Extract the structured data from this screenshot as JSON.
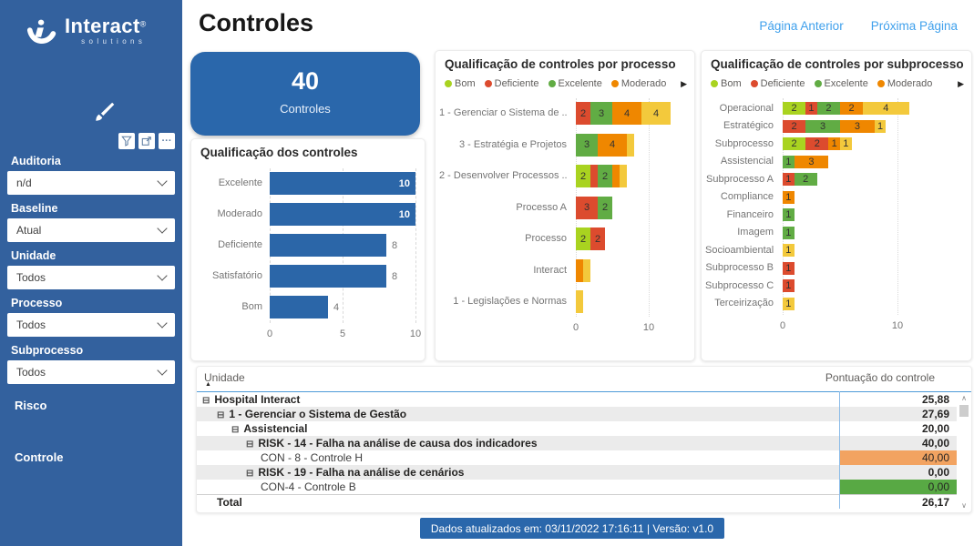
{
  "palette": {
    "Bom": "#a9d320",
    "Deficiente": "#dc4b2e",
    "Excelente": "#61ac44",
    "Moderado": "#ef8700",
    "Satisfatório": "#f3c93c"
  },
  "colors": {
    "sidebar": "#33619e",
    "accent_blue": "#2a67ab",
    "bar_blue": "#2b66a8",
    "link_blue": "#3fa0ec",
    "table_value_orange": "#f2a361",
    "table_value_green": "#58a944"
  },
  "sidebar": {
    "logo": {
      "brand": "Interact",
      "reg": "®",
      "sub": "solutions"
    },
    "tools": [
      "brush-clear-filters",
      "filter",
      "export",
      "more-options"
    ],
    "filters": [
      {
        "label": "Auditoria",
        "value": "n/d"
      },
      {
        "label": "Baseline",
        "value": "Atual"
      },
      {
        "label": "Unidade",
        "value": "Todos"
      },
      {
        "label": "Processo",
        "value": "Todos"
      },
      {
        "label": "Subprocesso",
        "value": "Todos"
      }
    ],
    "nav": [
      {
        "label": "Risco"
      },
      {
        "label": "Controle"
      }
    ]
  },
  "header": {
    "title": "Controles",
    "prev_label": "Página Anterior",
    "next_label": "Próxima Página"
  },
  "kpi": {
    "value": "40",
    "label": "Controles"
  },
  "chart_data": [
    {
      "id": "qual",
      "type": "bar",
      "title": "Qualificação dos controles",
      "categories": [
        "Excelente",
        "Moderado",
        "Deficiente",
        "Satisfatório",
        "Bom"
      ],
      "values": [
        10,
        10,
        8,
        8,
        4
      ],
      "xlim": [
        0,
        10
      ],
      "xticks": [
        0,
        5,
        10
      ],
      "bar_color": "#2b66a8",
      "orientation": "horizontal",
      "grid": "dashed-vertical"
    },
    {
      "id": "proc",
      "type": "stacked_bar",
      "title": "Qualificação de controles por processo",
      "legend": [
        "Bom",
        "Deficiente",
        "Excelente",
        "Moderado"
      ],
      "legend_position": "top",
      "orientation": "horizontal",
      "xlim": [
        0,
        13
      ],
      "xticks": [
        0,
        10
      ],
      "categories": [
        "1 - Gerenciar o Sistema de ...",
        "3 - Estratégia e Projetos",
        "2 - Desenvolver Processos ...",
        "Processo A",
        "Processo",
        "Interact",
        "1 - Legislações e Normas"
      ],
      "segments": [
        [
          {
            "s": "Deficiente",
            "v": 2
          },
          {
            "s": "Excelente",
            "v": 3
          },
          {
            "s": "Moderado",
            "v": 4
          },
          {
            "s": "Satisfatório",
            "v": 4
          }
        ],
        [
          {
            "s": "Excelente",
            "v": 3
          },
          {
            "s": "Moderado",
            "v": 4
          },
          {
            "s": "Satisfatório",
            "v": 1
          }
        ],
        [
          {
            "s": "Bom",
            "v": 2
          },
          {
            "s": "Deficiente",
            "v": 1
          },
          {
            "s": "Excelente",
            "v": 2
          },
          {
            "s": "Moderado",
            "v": 1
          },
          {
            "s": "Satisfatório",
            "v": 1
          }
        ],
        [
          {
            "s": "Deficiente",
            "v": 3
          },
          {
            "s": "Excelente",
            "v": 2
          }
        ],
        [
          {
            "s": "Bom",
            "v": 2
          },
          {
            "s": "Deficiente",
            "v": 2
          }
        ],
        [
          {
            "s": "Moderado",
            "v": 1
          },
          {
            "s": "Satisfatório",
            "v": 1
          }
        ],
        [
          {
            "s": "Satisfatório",
            "v": 1
          }
        ]
      ]
    },
    {
      "id": "sub",
      "type": "stacked_bar",
      "title": "Qualificação de controles por subprocesso",
      "legend": [
        "Bom",
        "Deficiente",
        "Excelente",
        "Moderado"
      ],
      "legend_position": "top",
      "orientation": "horizontal",
      "xlim": [
        0,
        11
      ],
      "xticks": [
        0,
        10
      ],
      "categories": [
        "Operacional",
        "Estratégico",
        "Subprocesso",
        "Assistencial",
        "Subprocesso A",
        "Compliance",
        "Financeiro",
        "Imagem",
        "Socioambiental",
        "Subprocesso B",
        "Subprocesso C",
        "Terceirização"
      ],
      "segments": [
        [
          {
            "s": "Bom",
            "v": 2
          },
          {
            "s": "Deficiente",
            "v": 1
          },
          {
            "s": "Excelente",
            "v": 2
          },
          {
            "s": "Moderado",
            "v": 2
          },
          {
            "s": "Satisfatório",
            "v": 4
          }
        ],
        [
          {
            "s": "Deficiente",
            "v": 2
          },
          {
            "s": "Excelente",
            "v": 3
          },
          {
            "s": "Moderado",
            "v": 3
          },
          {
            "s": "Satisfatório",
            "v": 1
          }
        ],
        [
          {
            "s": "Bom",
            "v": 2
          },
          {
            "s": "Deficiente",
            "v": 2
          },
          {
            "s": "Moderado",
            "v": 1
          },
          {
            "s": "Satisfatório",
            "v": 1
          }
        ],
        [
          {
            "s": "Excelente",
            "v": 1
          },
          {
            "s": "Moderado",
            "v": 3
          }
        ],
        [
          {
            "s": "Deficiente",
            "v": 1
          },
          {
            "s": "Excelente",
            "v": 2
          }
        ],
        [
          {
            "s": "Moderado",
            "v": 1
          }
        ],
        [
          {
            "s": "Excelente",
            "v": 1
          }
        ],
        [
          {
            "s": "Excelente",
            "v": 1
          }
        ],
        [
          {
            "s": "Satisfatório",
            "v": 1
          }
        ],
        [
          {
            "s": "Deficiente",
            "v": 1
          }
        ],
        [
          {
            "s": "Deficiente",
            "v": 1
          }
        ],
        [
          {
            "s": "Satisfatório",
            "v": 1
          }
        ]
      ]
    }
  ],
  "table": {
    "columns": [
      "Unidade",
      "Pontuação do controle"
    ],
    "rows": [
      {
        "label": "Hospital Interact",
        "level": 0,
        "bold": true,
        "collapsible": true,
        "value": "25,88",
        "shaded": false,
        "value_bg": null,
        "total": false
      },
      {
        "label": "1 - Gerenciar o Sistema de Gestão",
        "level": 1,
        "bold": true,
        "collapsible": true,
        "value": "27,69",
        "shaded": true,
        "value_bg": null,
        "total": false
      },
      {
        "label": "Assistencial",
        "level": 2,
        "bold": true,
        "collapsible": true,
        "value": "20,00",
        "shaded": false,
        "value_bg": null,
        "total": false
      },
      {
        "label": "RISK - 14 - Falha na análise de causa dos indicadores",
        "level": 3,
        "bold": true,
        "collapsible": true,
        "value": "40,00",
        "shaded": true,
        "value_bg": null,
        "total": false
      },
      {
        "label": "CON - 8 - Controle H",
        "level": 4,
        "bold": false,
        "collapsible": false,
        "value": "40,00",
        "shaded": false,
        "value_bg": "#f2a361",
        "total": false
      },
      {
        "label": "RISK - 19 - Falha na análise de cenários",
        "level": 3,
        "bold": true,
        "collapsible": true,
        "value": "0,00",
        "shaded": true,
        "value_bg": null,
        "total": false
      },
      {
        "label": "CON-4 - Controle B",
        "level": 4,
        "bold": false,
        "collapsible": false,
        "value": "0,00",
        "shaded": false,
        "value_bg": "#58a944",
        "total": false
      },
      {
        "label": "Total",
        "level": 0,
        "bold": true,
        "collapsible": false,
        "value": "26,17",
        "shaded": false,
        "value_bg": null,
        "total": true
      }
    ]
  },
  "footer": {
    "text": "Dados atualizados em: 03/11/2022 17:16:11 | Versão: v1.0"
  }
}
